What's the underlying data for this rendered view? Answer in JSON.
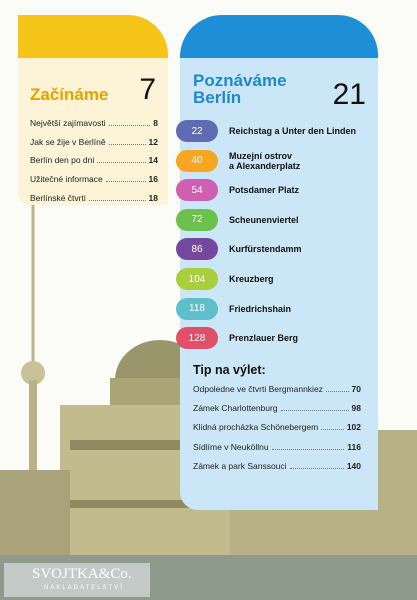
{
  "intro": {
    "title": "Začínáme",
    "page": 7,
    "items": [
      {
        "label": "Největší zajímavosti",
        "page": 8
      },
      {
        "label": "Jak se žije v Berlíně",
        "page": 12
      },
      {
        "label": "Berlín den po dni",
        "page": 14
      },
      {
        "label": "Užitečné informace",
        "page": 16
      },
      {
        "label": "Berlínské čtvrti",
        "page": 18
      }
    ]
  },
  "berlin": {
    "title": "Poznáváme\nBerlín",
    "page": 21,
    "districts": [
      {
        "page": 22,
        "label": "Reichstag a Unter den Linden",
        "color": "#5f6cb4"
      },
      {
        "page": 40,
        "label": "Muzejní ostrov\na Alexanderplatz",
        "color": "#f6a623"
      },
      {
        "page": 54,
        "label": "Potsdamer Platz",
        "color": "#cf5fb1"
      },
      {
        "page": 72,
        "label": "Scheunenviertel",
        "color": "#6cc04c"
      },
      {
        "page": 86,
        "label": "Kurfürstendamm",
        "color": "#74489c"
      },
      {
        "page": 104,
        "label": "Kreuzberg",
        "color": "#a9cf3d"
      },
      {
        "page": 118,
        "label": "Friedrichshain",
        "color": "#5cbfc9"
      },
      {
        "page": 128,
        "label": "Prenzlauer Berg",
        "color": "#e1506b"
      }
    ],
    "trips": {
      "heading": "Tip na výlet:",
      "items": [
        {
          "label": "Odpoledne ve čtvrti Bergmannkiez",
          "page": 70
        },
        {
          "label": "Zámek Charlottenburg",
          "page": 98
        },
        {
          "label": "Klidná procházka Schönebergem",
          "page": 102
        },
        {
          "label": "Sídlíme v Neuköllnu",
          "page": 116
        },
        {
          "label": "Zámek a park Sanssouci",
          "page": 140
        }
      ]
    }
  },
  "publisher": {
    "name": "SVOJTKA&Co.",
    "tagline": "NAKLADATELSTVÍ"
  }
}
